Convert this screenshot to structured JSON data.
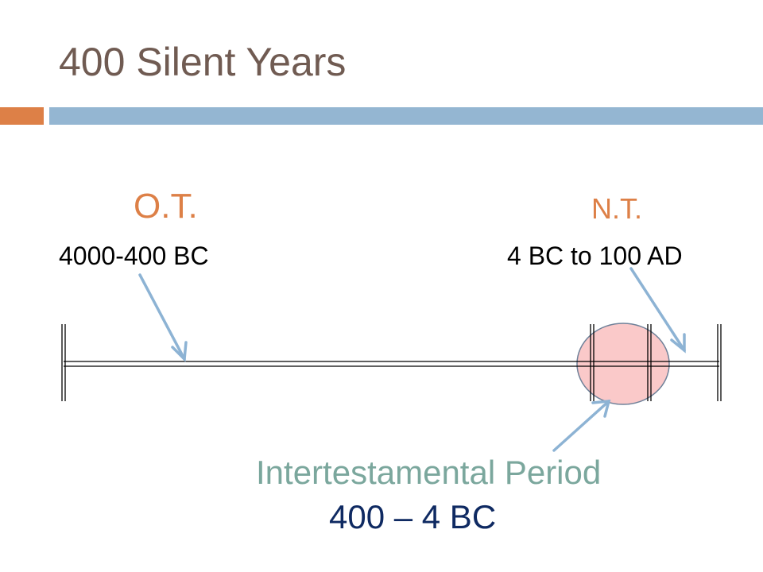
{
  "slide": {
    "title": "400 Silent Years"
  },
  "timeline": {
    "old_testament": {
      "label": "O.T.",
      "range": "4000-400 BC"
    },
    "new_testament": {
      "label": "N.T.",
      "range": "4 BC to 100 AD"
    },
    "intertestamental": {
      "label": "Intertestamental Period",
      "range": "400 – 4 BC"
    }
  },
  "colors": {
    "title": "#705b52",
    "accent_bar": "#dd8047",
    "title_rule": "#94b6d2",
    "testament_label": "#dd8047",
    "period_label": "#7ba79d",
    "period_range": "#0f2a62",
    "arrow": "#8db3d4",
    "highlight_fill": "#f9c0c0",
    "highlight_stroke": "#6f8199"
  }
}
